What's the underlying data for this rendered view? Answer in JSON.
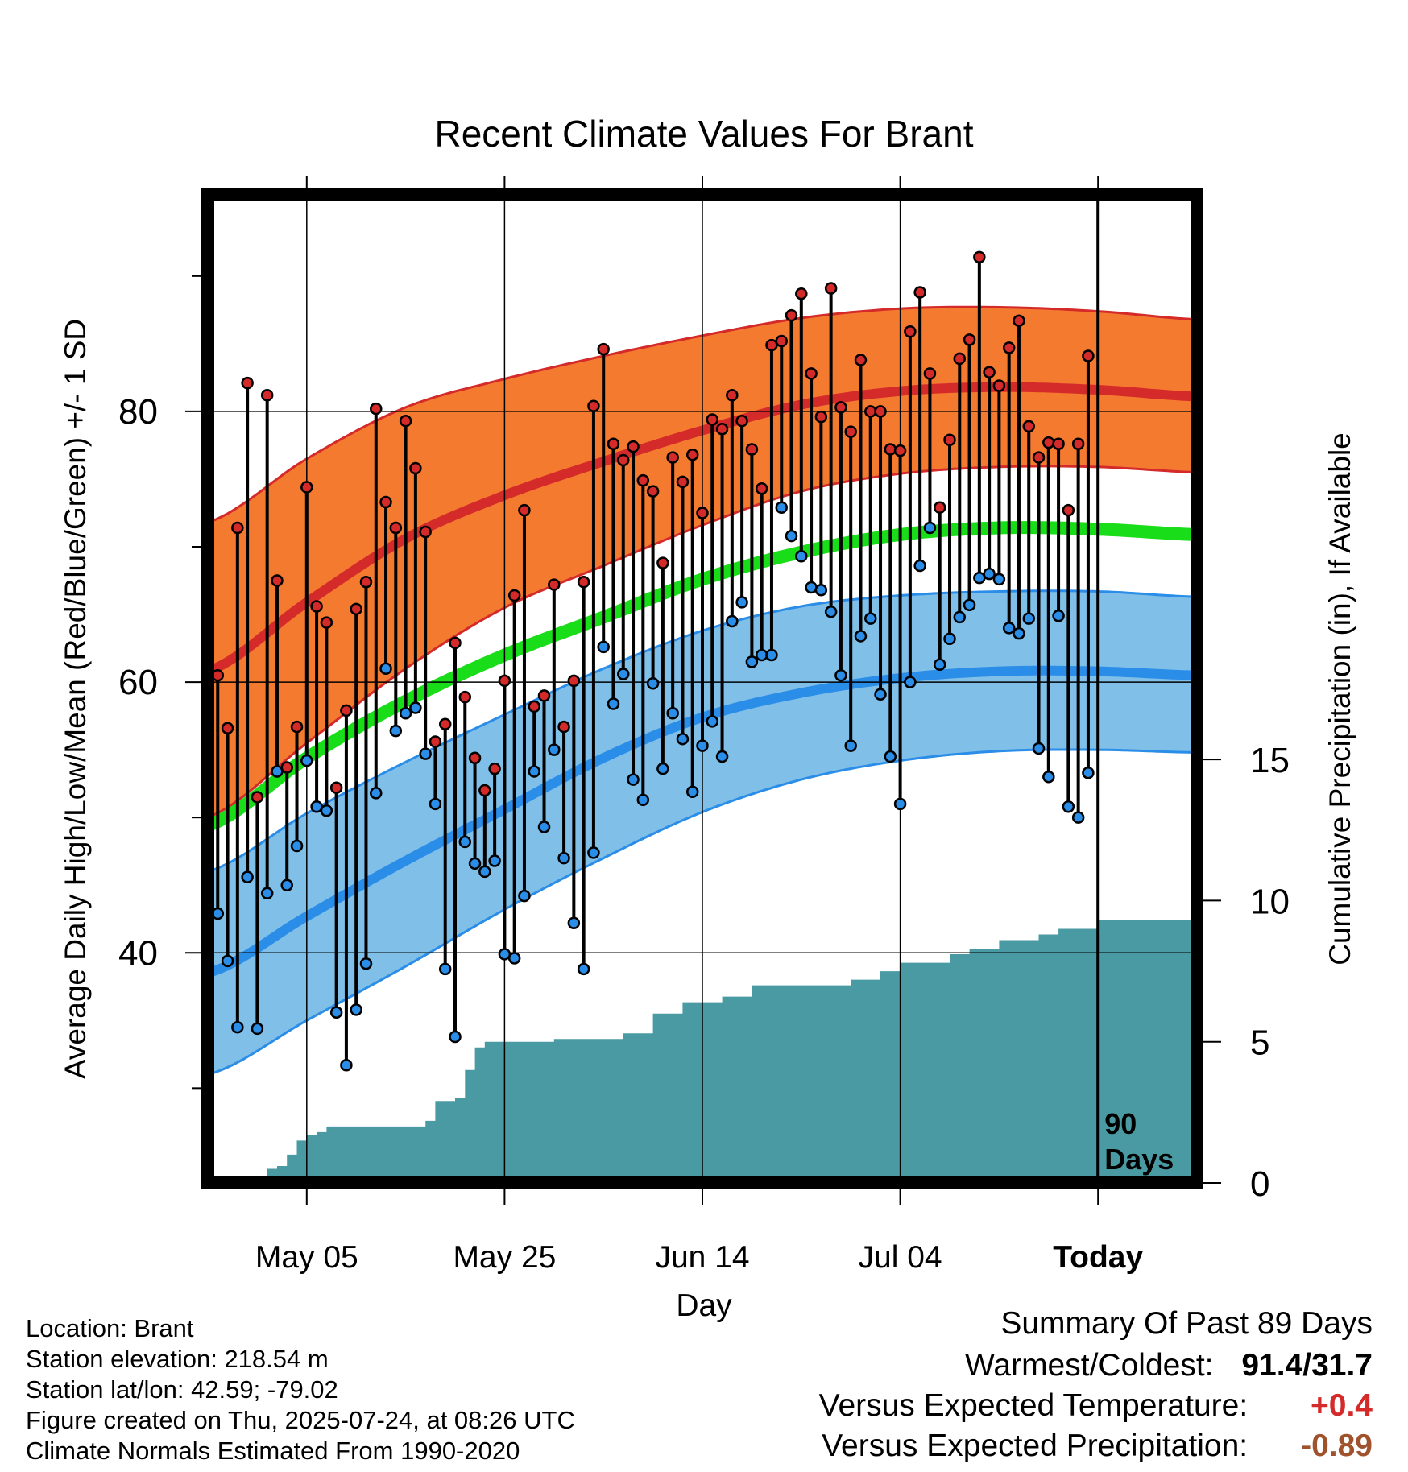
{
  "colors": {
    "high": "#d42a2a",
    "high_band": "#f47a30",
    "low": "#2a8de8",
    "low_band": "#80bfe8",
    "mean": "#19dd19",
    "precip": "#4a9aa3",
    "warm_text": "#d42a2a",
    "dry_text": "#a0522d"
  },
  "chart_data": {
    "type": "line",
    "title": "Recent Climate Values For Brant",
    "xlabel": "Day",
    "ylabel": "Average Daily High/Low/Mean (Red/Blue/Green) +/- 1 SD",
    "y2label": "Cumulative Precipitation (in), If Available",
    "x_ticks": [
      "May 05",
      "May 25",
      "Jun 14",
      "Jul 04",
      "Today"
    ],
    "x_tick_days": [
      10,
      30,
      50,
      70,
      90
    ],
    "xlim": [
      0,
      100
    ],
    "ylim": [
      23,
      96
    ],
    "y_ticks": [
      40,
      60,
      80
    ],
    "y_minor_ticks": [
      30,
      50,
      70,
      90
    ],
    "y2lim": [
      0,
      35
    ],
    "y2_ticks": [
      0,
      5,
      10,
      15
    ],
    "today_day": 90,
    "today_label": "90 Days",
    "normal_high": {
      "day": [
        0,
        10,
        20,
        30,
        40,
        50,
        60,
        70,
        80,
        90,
        100
      ],
      "values": [
        60.8,
        65.9,
        70.6,
        73.8,
        76.3,
        78.6,
        80.5,
        81.5,
        81.8,
        81.6,
        81.1
      ]
    },
    "normal_high_sd": {
      "day": [
        0,
        10,
        20,
        30,
        40,
        50,
        60,
        70,
        80,
        90,
        100
      ],
      "upper": [
        71.8,
        76.5,
        80.3,
        82.4,
        84.1,
        85.6,
        86.9,
        87.6,
        87.7,
        87.4,
        86.8
      ],
      "lower": [
        50.0,
        55.5,
        61.0,
        65.5,
        68.6,
        71.6,
        74.1,
        75.4,
        75.9,
        75.9,
        75.5
      ]
    },
    "normal_mean": {
      "day": [
        0,
        10,
        20,
        30,
        40,
        50,
        60,
        70,
        80,
        90,
        100
      ],
      "values": [
        49.4,
        54.4,
        58.6,
        62.0,
        64.8,
        67.6,
        69.6,
        70.9,
        71.4,
        71.3,
        70.9
      ]
    },
    "normal_low": {
      "day": [
        0,
        10,
        20,
        30,
        40,
        50,
        60,
        70,
        80,
        90,
        100
      ],
      "values": [
        38.5,
        42.7,
        46.8,
        50.6,
        54.4,
        57.4,
        59.2,
        60.3,
        60.8,
        60.8,
        60.5
      ]
    },
    "normal_low_sd": {
      "day": [
        0,
        10,
        20,
        30,
        40,
        50,
        60,
        70,
        80,
        90,
        100
      ],
      "upper": [
        46.0,
        50.3,
        54.1,
        57.6,
        61.0,
        63.8,
        65.6,
        66.4,
        66.7,
        66.7,
        66.3
      ],
      "lower": [
        31.0,
        35.0,
        39.0,
        43.2,
        47.0,
        50.4,
        52.8,
        54.2,
        54.9,
        55.0,
        54.8
      ]
    },
    "series": [
      {
        "name": "High",
        "values": [
          68.9,
          60.5,
          56.6,
          71.4,
          82.1,
          51.5,
          81.2,
          67.5,
          53.7,
          56.7,
          74.4,
          65.6,
          64.4,
          52.2,
          57.9,
          65.4,
          67.4,
          80.2,
          73.3,
          71.4,
          79.3,
          75.8,
          71.1,
          55.6,
          56.9,
          62.9,
          58.9,
          54.4,
          52.0,
          53.6,
          60.1,
          66.4,
          72.7,
          58.2,
          59.0,
          67.2,
          56.7,
          60.1,
          67.4,
          80.4,
          84.6,
          77.6,
          76.4,
          77.4,
          74.9,
          74.1,
          68.8,
          76.6,
          74.8,
          76.8,
          72.5,
          79.4,
          78.7,
          81.2,
          79.3,
          77.2,
          74.3,
          84.9,
          85.2,
          87.1,
          88.7,
          82.8,
          79.6,
          89.1,
          80.3,
          78.5,
          83.8,
          80.0,
          80.0,
          77.2,
          77.1,
          85.9,
          88.8,
          82.8,
          72.9,
          77.9,
          83.9,
          85.3,
          91.4,
          82.9,
          81.9,
          84.7,
          86.7,
          78.9,
          76.6,
          77.7,
          77.6,
          72.7,
          77.6,
          84.1
        ]
      },
      {
        "name": "Low",
        "values": [
          55.6,
          42.9,
          39.4,
          34.5,
          45.6,
          34.4,
          44.4,
          53.4,
          45.0,
          47.9,
          54.2,
          50.8,
          50.5,
          35.6,
          31.7,
          35.8,
          39.2,
          51.8,
          61.0,
          56.4,
          57.7,
          58.1,
          54.7,
          51.0,
          38.8,
          33.8,
          48.2,
          46.6,
          46.0,
          46.8,
          39.9,
          39.6,
          44.2,
          53.4,
          49.3,
          55.0,
          47.0,
          42.2,
          38.8,
          47.4,
          62.6,
          58.4,
          60.6,
          52.8,
          51.3,
          59.9,
          53.6,
          57.7,
          55.8,
          51.9,
          55.3,
          57.1,
          54.5,
          64.5,
          65.9,
          61.5,
          62.0,
          62.0,
          72.9,
          70.8,
          69.3,
          67.0,
          66.8,
          65.2,
          60.5,
          55.3,
          63.4,
          64.7,
          59.1,
          54.5,
          51.0,
          60.0,
          68.6,
          71.4,
          61.3,
          63.2,
          64.8,
          65.7,
          67.7,
          68.0,
          67.6,
          64.0,
          63.6,
          64.7,
          55.1,
          53.0,
          64.9,
          50.8,
          50.0,
          53.3
        ]
      },
      {
        "name": "Cumulative Precipitation",
        "day": [
          0,
          5,
          6,
          7,
          8,
          9,
          10,
          11,
          12,
          22,
          23,
          25,
          26,
          27,
          28,
          30,
          35,
          42,
          45,
          48,
          52,
          55,
          62,
          65,
          68,
          70,
          75,
          77,
          80,
          84,
          86,
          90,
          100
        ],
        "values": [
          0.0,
          0.0,
          0.5,
          0.6,
          1.0,
          1.5,
          1.7,
          1.8,
          2.0,
          2.2,
          2.9,
          3.0,
          4.0,
          4.8,
          5.0,
          5.0,
          5.1,
          5.3,
          6.0,
          6.4,
          6.6,
          7.0,
          7.0,
          7.2,
          7.5,
          7.8,
          8.1,
          8.3,
          8.6,
          8.8,
          9.0,
          9.3,
          9.3
        ]
      }
    ]
  },
  "info": {
    "location": "Location: Brant",
    "elevation": "Station elevation: 218.54 m",
    "latlon": "Station lat/lon: 42.59; -79.02",
    "created": "Figure created on Thu, 2025-07-24, at 08:26 UTC",
    "normals": "Climate Normals Estimated From 1990-2020"
  },
  "summary": {
    "title": "Summary Of Past 89 Days",
    "warm_cold_label": "Warmest/Coldest:",
    "warm_cold_value": "91.4/31.7",
    "temp_label": "Versus Expected Temperature:",
    "temp_value": "+0.4",
    "precip_label": "Versus Expected Precipitation:",
    "precip_value": "-0.89"
  }
}
